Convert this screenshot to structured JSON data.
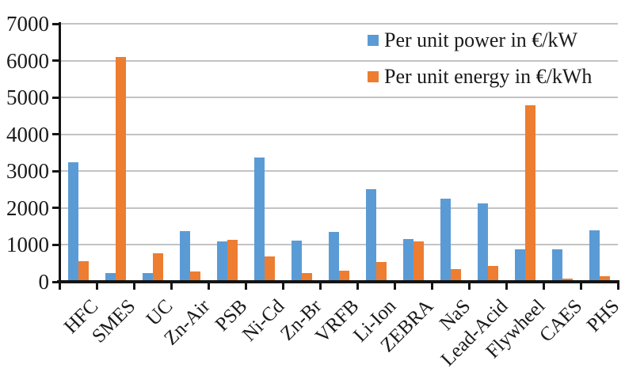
{
  "chart_data": {
    "type": "bar",
    "categories": [
      "HFC",
      "SMES",
      "UC",
      "Zn-Air",
      "PSB",
      "Ni-Cd",
      "Zn-Br",
      "VRFB",
      "Li-Ion",
      "ZEBRA",
      "NaS",
      "Lead-Acid",
      "Flywheel",
      "CAES",
      "PHS"
    ],
    "series": [
      {
        "name": "Per unit power in €/kW",
        "color": "#5B9BD5",
        "values": [
          3250,
          230,
          230,
          1370,
          1090,
          3380,
          1120,
          1360,
          2510,
          1150,
          2250,
          2130,
          870,
          890,
          1400
        ]
      },
      {
        "name": "Per unit energy in €/kWh",
        "color": "#ED7D31",
        "values": [
          550,
          6100,
          780,
          270,
          1140,
          690,
          230,
          310,
          540,
          1090,
          340,
          420,
          4780,
          80,
          150
        ]
      }
    ],
    "ylim": [
      0,
      7000
    ],
    "ytick_step": 1000,
    "y_tick_labels": [
      "0",
      "1000",
      "2000",
      "3000",
      "4000",
      "5000",
      "6000",
      "7000"
    ],
    "grid": true,
    "legend_position": "top-right",
    "axis_color": "#141414",
    "gridline_color": "#c3c3c3"
  }
}
